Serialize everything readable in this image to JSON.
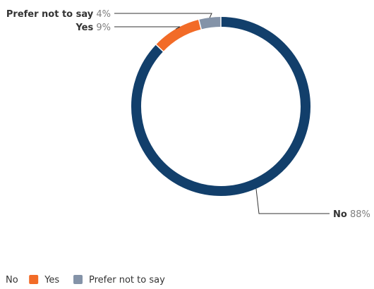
{
  "chart_data": {
    "type": "pie",
    "title": "",
    "categories": [
      "No",
      "Yes",
      "Prefer not to say"
    ],
    "values": [
      88,
      9,
      4
    ],
    "value_labels": [
      "88%",
      "9%",
      "4%"
    ],
    "colors": [
      "#123f6b",
      "#f26b27",
      "#8493a8"
    ],
    "donut": true,
    "data_labels": true,
    "legend_position": "bottom-left"
  }
}
